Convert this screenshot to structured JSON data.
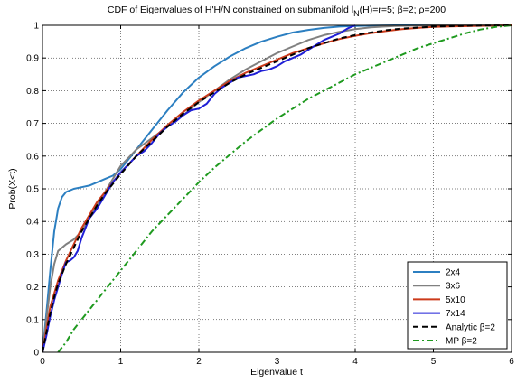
{
  "chart_data": {
    "type": "line",
    "title_main": "CDF of Eigenvalues of H'H/N constrained on submanifold l",
    "title_sub": "N",
    "title_rest": "(H)=r=5; β=2; ρ=200",
    "xlabel": "Eigenvalue t",
    "ylabel": "Prob(X<t)",
    "xlim": [
      0,
      6
    ],
    "ylim": [
      0,
      1
    ],
    "xticks": [
      "0",
      "1",
      "2",
      "3",
      "4",
      "5",
      "6"
    ],
    "yticks": [
      "0",
      "0.1",
      "0.2",
      "0.3",
      "0.4",
      "0.5",
      "0.6",
      "0.7",
      "0.8",
      "0.9",
      "1"
    ],
    "grid": true,
    "legend_position": "bottom-right",
    "series": [
      {
        "name": "2x4",
        "color": "#2c7fc1",
        "style": "solid",
        "x": [
          0,
          0.05,
          0.1,
          0.15,
          0.2,
          0.25,
          0.3,
          0.4,
          0.5,
          0.6,
          0.7,
          0.8,
          0.9,
          1.0,
          1.2,
          1.4,
          1.6,
          1.8,
          2.0,
          2.2,
          2.4,
          2.6,
          2.8,
          3.0,
          3.2,
          3.4,
          3.6,
          3.8,
          4.0,
          4.2,
          4.5,
          5.0,
          6.0
        ],
        "y": [
          0,
          0.12,
          0.25,
          0.37,
          0.44,
          0.475,
          0.49,
          0.5,
          0.505,
          0.51,
          0.52,
          0.53,
          0.54,
          0.56,
          0.62,
          0.68,
          0.74,
          0.795,
          0.84,
          0.875,
          0.905,
          0.93,
          0.95,
          0.965,
          0.978,
          0.986,
          0.992,
          0.996,
          0.998,
          0.999,
          1.0,
          1.0,
          1.0
        ]
      },
      {
        "name": "3x6",
        "color": "#808080",
        "style": "solid",
        "x": [
          0,
          0.05,
          0.1,
          0.15,
          0.2,
          0.3,
          0.4,
          0.5,
          0.6,
          0.7,
          0.8,
          0.9,
          1.0,
          1.2,
          1.4,
          1.6,
          1.8,
          2.0,
          2.2,
          2.4,
          2.6,
          2.8,
          3.0,
          3.2,
          3.4,
          3.6,
          3.8,
          4.0,
          4.2,
          4.5,
          5.0,
          6.0
        ],
        "y": [
          0,
          0.1,
          0.2,
          0.27,
          0.31,
          0.33,
          0.345,
          0.37,
          0.41,
          0.45,
          0.49,
          0.53,
          0.57,
          0.62,
          0.655,
          0.69,
          0.725,
          0.765,
          0.8,
          0.835,
          0.865,
          0.89,
          0.915,
          0.935,
          0.955,
          0.97,
          0.98,
          0.988,
          0.994,
          0.998,
          1.0,
          1.0
        ]
      },
      {
        "name": "5x10",
        "color": "#cc3a1a",
        "style": "solid",
        "x": [
          0,
          0.05,
          0.1,
          0.15,
          0.2,
          0.3,
          0.4,
          0.5,
          0.6,
          0.7,
          0.8,
          0.9,
          1.0,
          1.2,
          1.4,
          1.6,
          1.8,
          2.0,
          2.2,
          2.4,
          2.6,
          2.8,
          3.0,
          3.2,
          3.4,
          3.6,
          3.8,
          4.0,
          4.2,
          4.4,
          4.6,
          4.8,
          5.0,
          5.5,
          6.0
        ],
        "y": [
          0,
          0.07,
          0.14,
          0.18,
          0.22,
          0.28,
          0.33,
          0.38,
          0.42,
          0.46,
          0.49,
          0.52,
          0.55,
          0.6,
          0.65,
          0.695,
          0.735,
          0.77,
          0.8,
          0.83,
          0.855,
          0.875,
          0.895,
          0.915,
          0.93,
          0.945,
          0.958,
          0.968,
          0.976,
          0.983,
          0.988,
          0.992,
          0.995,
          0.998,
          1.0
        ]
      },
      {
        "name": "7x14",
        "color": "#1f1fd6",
        "style": "solid",
        "x": [
          0,
          0.05,
          0.1,
          0.15,
          0.2,
          0.25,
          0.3,
          0.35,
          0.4,
          0.45,
          0.5,
          0.55,
          0.6,
          0.7,
          0.8,
          0.9,
          1.0,
          1.1,
          1.2,
          1.3,
          1.4,
          1.5,
          1.6,
          1.7,
          1.8,
          1.9,
          2.0,
          2.1,
          2.2,
          2.3,
          2.4,
          2.5,
          2.6,
          2.7,
          2.8,
          2.9,
          3.0,
          3.1,
          3.2,
          3.3,
          3.4,
          3.5,
          3.6,
          3.7,
          3.8,
          3.9,
          4.0
        ],
        "y": [
          0,
          0.05,
          0.11,
          0.16,
          0.2,
          0.24,
          0.275,
          0.28,
          0.29,
          0.31,
          0.35,
          0.38,
          0.41,
          0.44,
          0.48,
          0.52,
          0.55,
          0.575,
          0.6,
          0.615,
          0.64,
          0.67,
          0.69,
          0.705,
          0.725,
          0.74,
          0.745,
          0.76,
          0.79,
          0.81,
          0.825,
          0.84,
          0.845,
          0.85,
          0.86,
          0.865,
          0.875,
          0.89,
          0.9,
          0.91,
          0.925,
          0.94,
          0.955,
          0.965,
          0.975,
          0.99,
          1.0
        ]
      },
      {
        "name": "Analytic β=2",
        "color": "#000000",
        "style": "dashed",
        "x": [
          0,
          0.05,
          0.1,
          0.15,
          0.2,
          0.3,
          0.4,
          0.5,
          0.6,
          0.7,
          0.8,
          0.9,
          1.0,
          1.2,
          1.4,
          1.6,
          1.8,
          2.0,
          2.2,
          2.4,
          2.6,
          2.8,
          3.0,
          3.2,
          3.4,
          3.6,
          3.8,
          4.0,
          4.2,
          4.4,
          4.6,
          4.8,
          5.0,
          5.5,
          6.0
        ],
        "y": [
          0,
          0.06,
          0.12,
          0.17,
          0.21,
          0.27,
          0.32,
          0.37,
          0.41,
          0.45,
          0.485,
          0.515,
          0.545,
          0.6,
          0.645,
          0.69,
          0.73,
          0.765,
          0.795,
          0.825,
          0.85,
          0.87,
          0.89,
          0.91,
          0.93,
          0.945,
          0.96,
          0.97,
          0.978,
          0.985,
          0.99,
          0.993,
          0.996,
          0.999,
          1.0
        ]
      },
      {
        "name": "MP β=2",
        "color": "#1f9a1f",
        "style": "dashdot",
        "x": [
          0.2,
          0.3,
          0.4,
          0.5,
          0.6,
          0.8,
          1.0,
          1.2,
          1.4,
          1.6,
          1.8,
          2.0,
          2.2,
          2.4,
          2.6,
          2.8,
          3.0,
          3.2,
          3.4,
          3.6,
          3.8,
          4.0,
          4.2,
          4.4,
          4.6,
          4.8,
          5.0,
          5.2,
          5.4,
          5.6,
          5.8,
          6.0
        ],
        "y": [
          0.0,
          0.03,
          0.07,
          0.1,
          0.13,
          0.19,
          0.25,
          0.31,
          0.37,
          0.42,
          0.47,
          0.52,
          0.565,
          0.605,
          0.645,
          0.68,
          0.715,
          0.745,
          0.775,
          0.8,
          0.825,
          0.85,
          0.87,
          0.89,
          0.91,
          0.93,
          0.945,
          0.96,
          0.975,
          0.987,
          0.995,
          1.0
        ]
      }
    ]
  }
}
